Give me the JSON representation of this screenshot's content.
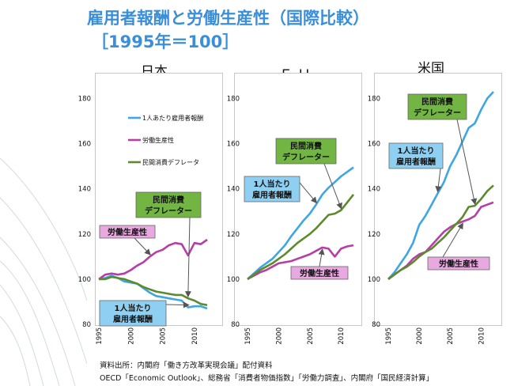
{
  "slide": {
    "title_line1": "雇用者報酬と労働生産性（国際比較）",
    "title_line2": "［1995年＝100］",
    "source_line1": "資料出所：内閣府「働き方改革実現会議」配付資料",
    "source_line2": "OECD「Economic Outlook」、総務省「消費者物価指数」「労働力調査」、内閣府「国民経済計算」"
  },
  "colors": {
    "title": "#3a8fd8",
    "compensation": "#3ea6e3",
    "productivity": "#b53fa6",
    "deflator": "#5d8a2d",
    "callout_green_fill": "#72b543",
    "callout_blue_fill": "#8fd0f2",
    "callout_pink_fill": "#e7a9df"
  },
  "chart_data": [
    {
      "type": "line",
      "title": "日本",
      "xlabel": "",
      "ylabel": "",
      "xlim": [
        1995,
        2012
      ],
      "ylim": [
        80,
        190
      ],
      "x_ticks": [
        1995,
        2000,
        2005,
        2010
      ],
      "y_ticks": [
        80,
        100,
        120,
        140,
        160,
        180
      ],
      "grid": false,
      "legend_position": "top-right",
      "legend": [
        {
          "label": "1人あたり雇用者報酬",
          "series": 0
        },
        {
          "label": "労働生産性",
          "series": 1
        },
        {
          "label": "民間消費デフレータ",
          "series": 2
        }
      ],
      "series": [
        {
          "name": "1人あたり雇用者報酬",
          "color_key": "compensation",
          "x": [
            1995,
            1996,
            1997,
            1998,
            1999,
            2000,
            2001,
            2002,
            2003,
            2004,
            2005,
            2006,
            2007,
            2008,
            2009,
            2010,
            2011,
            2012
          ],
          "values": [
            100,
            100.5,
            101.5,
            100.5,
            99,
            98.5,
            98,
            96,
            94,
            92.5,
            92,
            91.5,
            91,
            90.5,
            87.5,
            88,
            88,
            87
          ]
        },
        {
          "name": "労働生産性",
          "color_key": "productivity",
          "x": [
            1995,
            1996,
            1997,
            1998,
            1999,
            2000,
            2001,
            2002,
            2003,
            2004,
            2005,
            2006,
            2007,
            2008,
            2009,
            2010,
            2011,
            2012
          ],
          "values": [
            100,
            102,
            102.5,
            102,
            102.5,
            104,
            106,
            107.5,
            110,
            112,
            113,
            115,
            116,
            115.5,
            110.5,
            116,
            115.5,
            117.5
          ]
        },
        {
          "name": "民間消費デフレータ",
          "color_key": "deflator",
          "x": [
            1995,
            1996,
            1997,
            1998,
            1999,
            2000,
            2001,
            2002,
            2003,
            2004,
            2005,
            2006,
            2007,
            2008,
            2009,
            2010,
            2011,
            2012
          ],
          "values": [
            100,
            100,
            101,
            100.5,
            100,
            99,
            98,
            96.5,
            95.5,
            94.5,
            94,
            93.5,
            93,
            93,
            91.5,
            90.5,
            89,
            88.5
          ]
        }
      ],
      "annotations": [
        {
          "text": "労働生産性",
          "series": 1
        },
        {
          "text": "民間消費\nデフレーター",
          "series": 2
        },
        {
          "text": "1人当たり\n雇用者報酬",
          "series": 0
        }
      ]
    },
    {
      "type": "line",
      "title": "ＥＵ",
      "xlabel": "",
      "ylabel": "",
      "xlim": [
        1995,
        2012
      ],
      "ylim": [
        80,
        190
      ],
      "x_ticks": [
        1995,
        2000,
        2005,
        2010
      ],
      "y_ticks": [
        80,
        100,
        120,
        140,
        160,
        180
      ],
      "grid": false,
      "series": [
        {
          "name": "1人当たり雇用者報酬",
          "color_key": "compensation",
          "x": [
            1995,
            1996,
            1997,
            1998,
            1999,
            2000,
            2001,
            2002,
            2003,
            2004,
            2005,
            2006,
            2007,
            2008,
            2009,
            2010,
            2011,
            2012
          ],
          "values": [
            100,
            102.5,
            105,
            107,
            109,
            112,
            115,
            119,
            122.5,
            126,
            129,
            133,
            137.5,
            140.5,
            143,
            145.5,
            147.5,
            149.5
          ]
        },
        {
          "name": "労働生産性",
          "color_key": "productivity",
          "x": [
            1995,
            1996,
            1997,
            1998,
            1999,
            2000,
            2001,
            2002,
            2003,
            2004,
            2005,
            2006,
            2007,
            2008,
            2009,
            2010,
            2011,
            2012
          ],
          "values": [
            100,
            101.5,
            103,
            104,
            105.5,
            107,
            107.5,
            108,
            109,
            110,
            111,
            112.5,
            114,
            113.5,
            110,
            113.5,
            114.5,
            115
          ]
        },
        {
          "name": "民間消費デフレーター",
          "color_key": "deflator",
          "x": [
            1995,
            1996,
            1997,
            1998,
            1999,
            2000,
            2001,
            2002,
            2003,
            2004,
            2005,
            2006,
            2007,
            2008,
            2009,
            2010,
            2011,
            2012
          ],
          "values": [
            100,
            102,
            104,
            105.5,
            107,
            109,
            111,
            113.5,
            116,
            118,
            120,
            122.5,
            125.5,
            128.5,
            129,
            130.5,
            134,
            137.5
          ]
        }
      ],
      "annotations": [
        {
          "text": "民間消費\nデフレーター",
          "series": 2
        },
        {
          "text": "1人当たり\n雇用者報酬",
          "series": 0
        },
        {
          "text": "労働生産性",
          "series": 1
        }
      ]
    },
    {
      "type": "line",
      "title": "米国",
      "xlabel": "",
      "ylabel": "",
      "xlim": [
        1995,
        2012
      ],
      "ylim": [
        80,
        190
      ],
      "x_ticks": [
        1995,
        2000,
        2005,
        2010
      ],
      "y_ticks": [
        80,
        100,
        120,
        140,
        160,
        180
      ],
      "grid": false,
      "series": [
        {
          "name": "1人当たり雇用者報酬",
          "color_key": "compensation",
          "x": [
            1995,
            1996,
            1997,
            1998,
            1999,
            2000,
            2001,
            2002,
            2003,
            2004,
            2005,
            2006,
            2007,
            2008,
            2009,
            2010,
            2011,
            2012
          ],
          "values": [
            100,
            103,
            107,
            111,
            116,
            124,
            128,
            133,
            138,
            143,
            150,
            155,
            161,
            167,
            169,
            175,
            180,
            183
          ]
        },
        {
          "name": "労働生産性",
          "color_key": "productivity",
          "x": [
            1995,
            1996,
            1997,
            1998,
            1999,
            2000,
            2001,
            2002,
            2003,
            2004,
            2005,
            2006,
            2007,
            2008,
            2009,
            2010,
            2011,
            2012
          ],
          "values": [
            100,
            102,
            104,
            106,
            109,
            111,
            112,
            115,
            118,
            121,
            123,
            124.5,
            125.5,
            126.5,
            128,
            132,
            133,
            134
          ]
        },
        {
          "name": "民間消費デフレーター",
          "color_key": "deflator",
          "x": [
            1995,
            1996,
            1997,
            1998,
            1999,
            2000,
            2001,
            2002,
            2003,
            2004,
            2005,
            2006,
            2007,
            2008,
            2009,
            2010,
            2011,
            2012
          ],
          "values": [
            100,
            102,
            104,
            105.5,
            107.5,
            110,
            112,
            113.5,
            116,
            118.5,
            121.5,
            124.5,
            127.5,
            132,
            132.5,
            135.5,
            139,
            141.5
          ]
        }
      ],
      "annotations": [
        {
          "text": "民間消費\nデフレーター",
          "series": 2
        },
        {
          "text": "1人当たり\n雇用者報酬",
          "series": 0
        },
        {
          "text": "労働生産性",
          "series": 1
        }
      ]
    }
  ]
}
